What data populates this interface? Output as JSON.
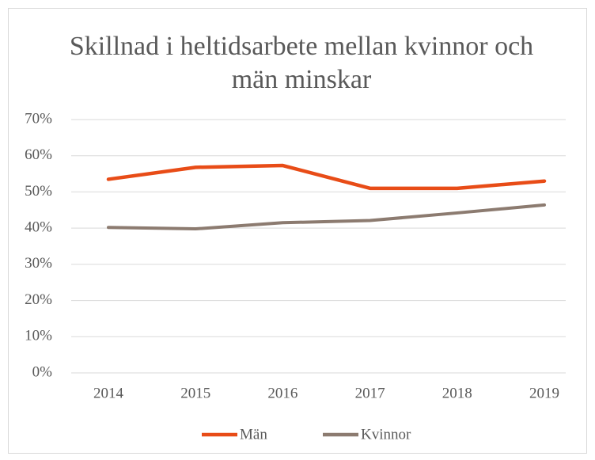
{
  "chart_data": {
    "type": "line",
    "title": "Skillnad i heltidsarbete mellan kvinnor och män minskar",
    "categories": [
      "2014",
      "2015",
      "2016",
      "2017",
      "2018",
      "2019"
    ],
    "series": [
      {
        "name": "Män",
        "color": "#e84c17",
        "values": [
          53.5,
          56.8,
          57.3,
          51,
          51,
          53
        ]
      },
      {
        "name": "Kvinnor",
        "color": "#8c7b70",
        "values": [
          40.2,
          39.8,
          41.5,
          42.1,
          44.2,
          46.4
        ]
      }
    ],
    "ylim": [
      0,
      70
    ],
    "yticks": [
      {
        "value": 0,
        "label": "0%"
      },
      {
        "value": 10,
        "label": "10%"
      },
      {
        "value": 20,
        "label": "20%"
      },
      {
        "value": 30,
        "label": "30%"
      },
      {
        "value": 40,
        "label": "40%"
      },
      {
        "value": 50,
        "label": "50%"
      },
      {
        "value": 60,
        "label": "60%"
      },
      {
        "value": 70,
        "label": "70%"
      }
    ],
    "grid": true,
    "legend": "bottom"
  }
}
